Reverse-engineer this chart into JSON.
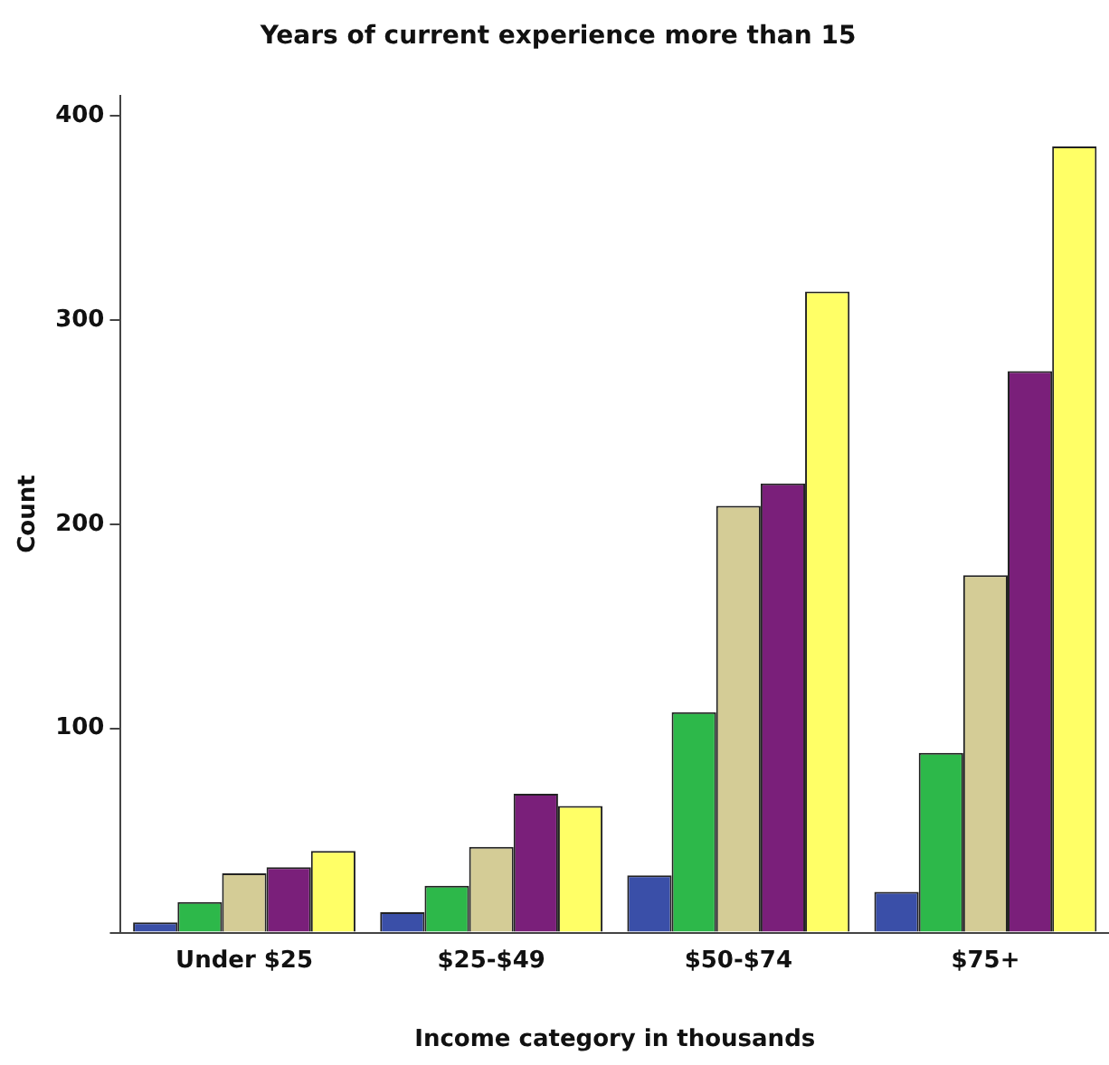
{
  "chart_data": {
    "type": "bar",
    "title": "Years of current experience more than 15",
    "xlabel": "Income category in thousands",
    "ylabel": "Count",
    "categories": [
      "Under $25",
      "$25-$49",
      "$50-$74",
      "$75+"
    ],
    "series": [
      {
        "color": "#3a4fa8",
        "values": [
          5,
          10,
          28,
          20
        ]
      },
      {
        "color": "#2db84a",
        "values": [
          15,
          23,
          108,
          88
        ]
      },
      {
        "color": "#d4cc96",
        "values": [
          29,
          42,
          209,
          175
        ]
      },
      {
        "color": "#7a1f7a",
        "values": [
          32,
          68,
          220,
          275
        ]
      },
      {
        "color": "#ffff66",
        "values": [
          40,
          62,
          314,
          385
        ]
      }
    ],
    "ylim": [
      0,
      410
    ],
    "yticks": [
      {
        "value": 0,
        "label": null
      },
      100,
      200,
      300,
      400
    ],
    "grid": false,
    "legend": false
  }
}
